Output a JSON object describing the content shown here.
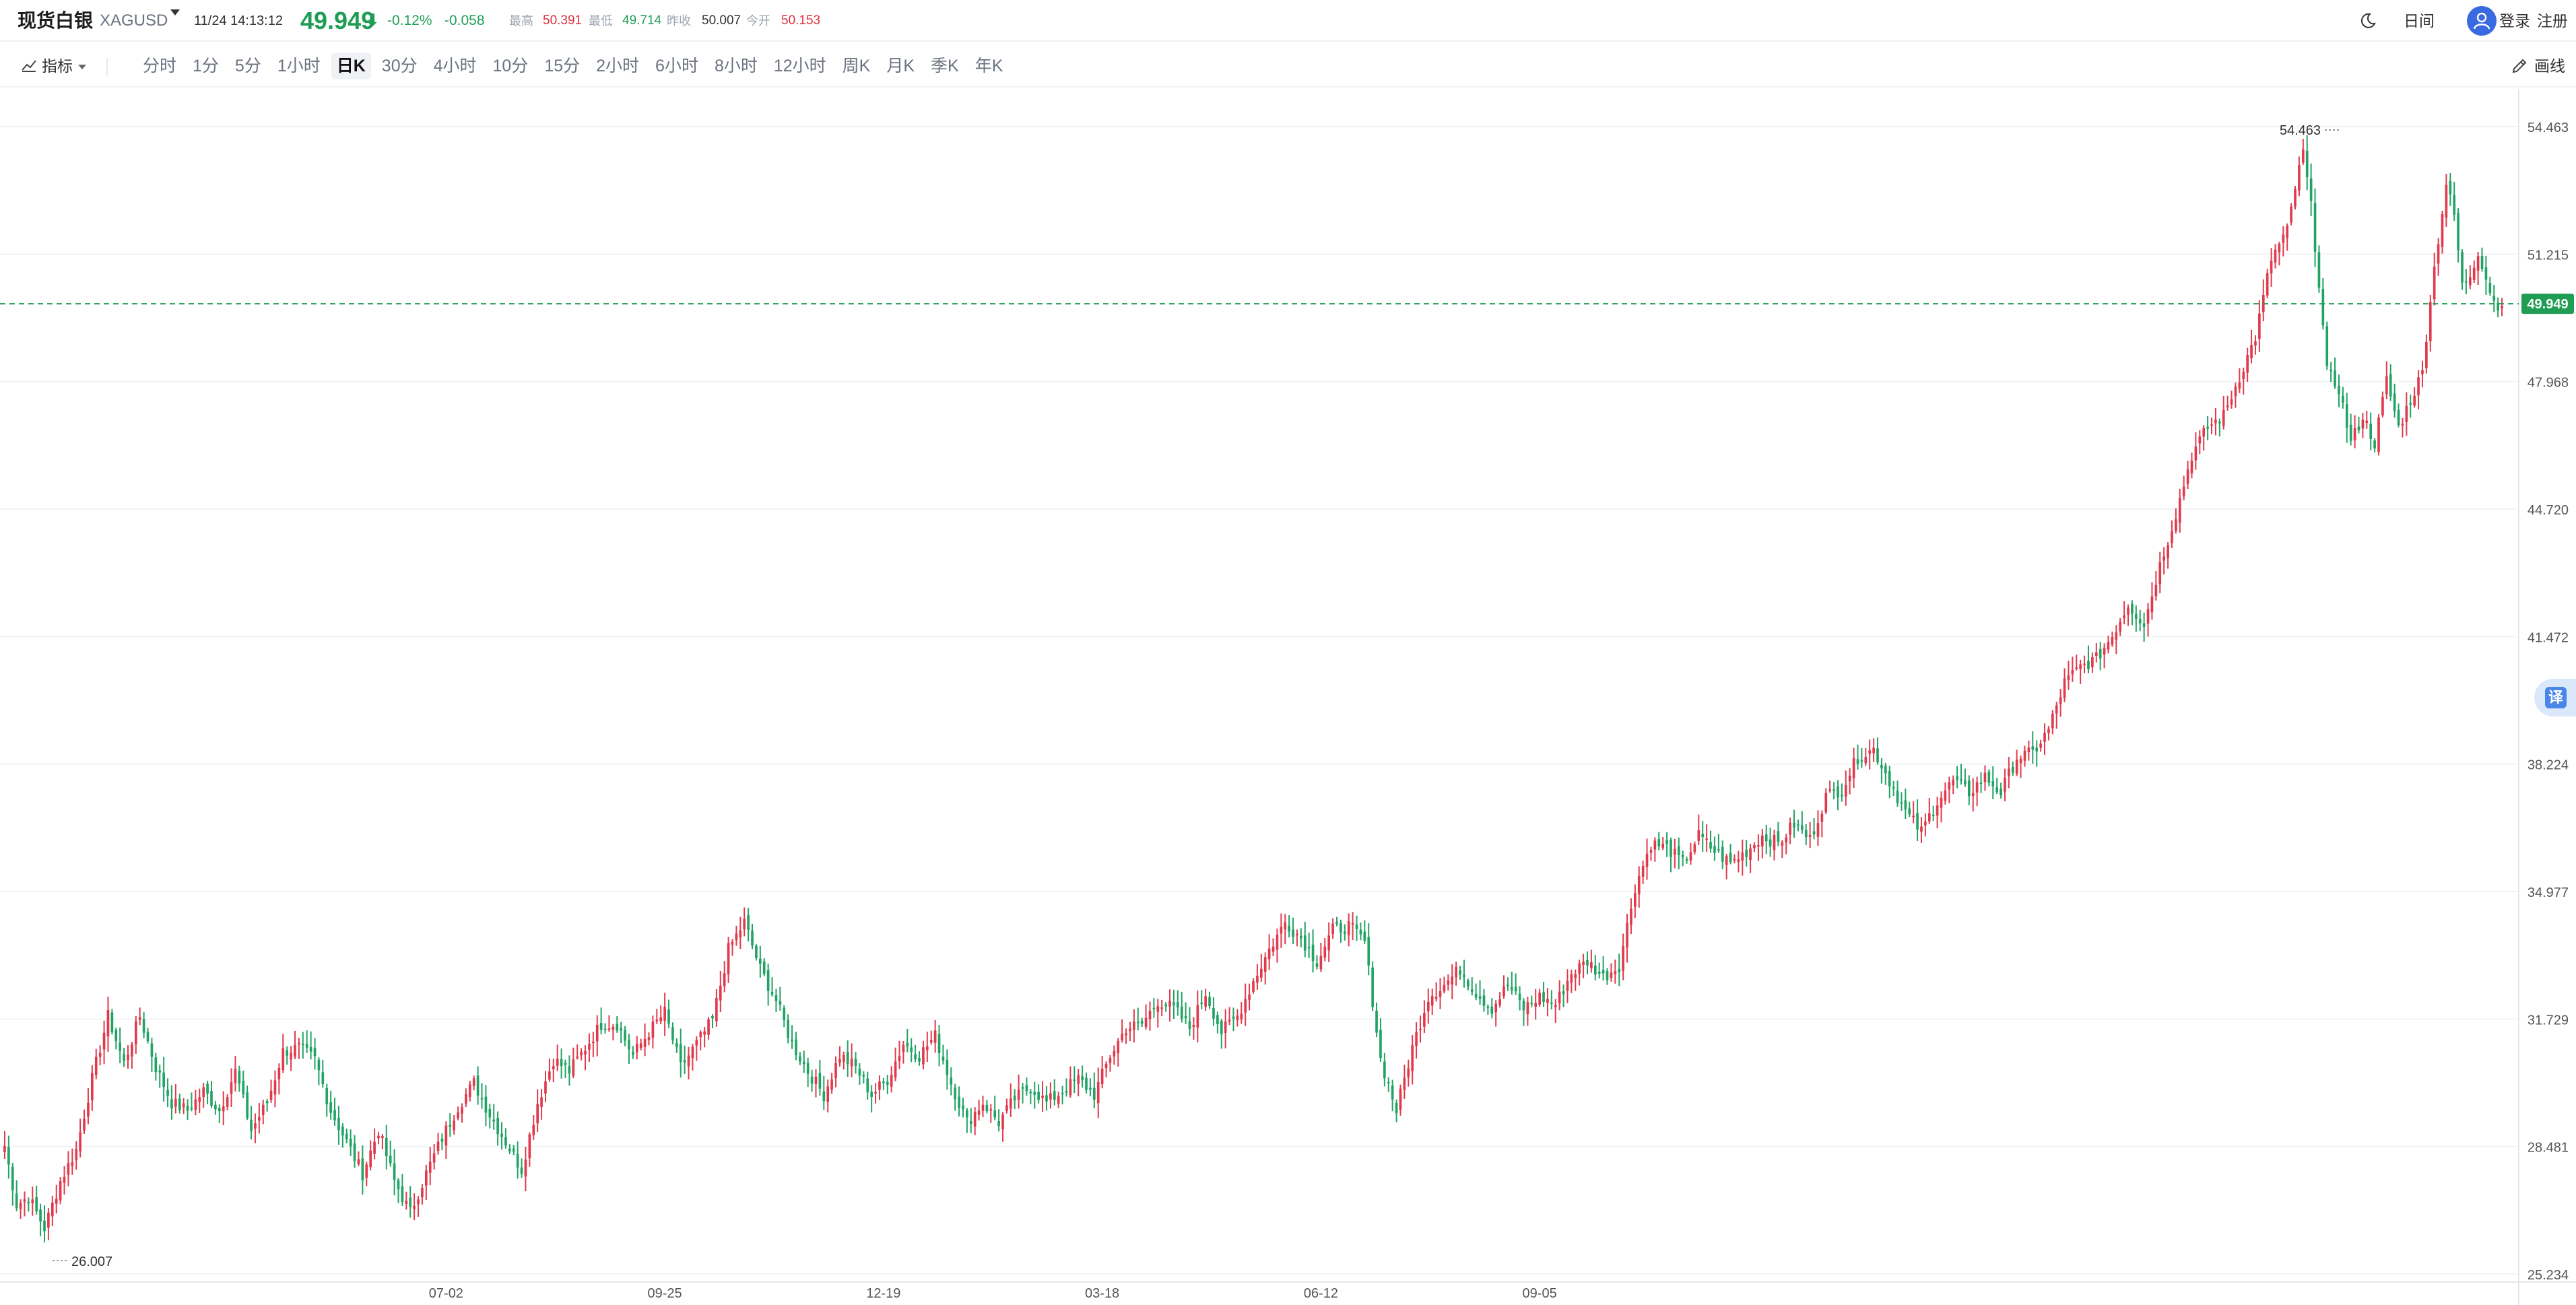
{
  "header": {
    "symbol_name": "现货白银",
    "symbol_code": "XAGUSD",
    "datetime": "11/24 14:13:12",
    "price": "49.949",
    "price_arrow": "⬇",
    "change_pct": "-0.12%",
    "change_value": "-0.058",
    "stats": [
      {
        "label": "最高",
        "value": "50.391",
        "color": "red"
      },
      {
        "label": "最低",
        "value": "49.714",
        "color": "green"
      },
      {
        "label": "昨收",
        "value": "50.007",
        "color": "dark"
      },
      {
        "label": "今开",
        "value": "50.153",
        "color": "red"
      }
    ],
    "day_night_label": "日间",
    "login_label": "登录",
    "register_label": "注册"
  },
  "toolbar": {
    "indicators_label": "指标",
    "timeframes": [
      "分时",
      "1分",
      "5分",
      "1小时",
      "日K",
      "30分",
      "4小时",
      "10分",
      "15分",
      "2小时",
      "6小时",
      "8小时",
      "12小时",
      "周K",
      "月K",
      "季K",
      "年K"
    ],
    "active_timeframe": "日K",
    "draw_label": "画线"
  },
  "translate_label": "译",
  "colors": {
    "up": "#e03a4c",
    "down": "#21a365",
    "current_price_tag": "#1f9d55",
    "grid": "#f1f3f5",
    "axis_text": "#555555"
  },
  "chart_data": {
    "type": "candlestick",
    "yticks": [
      54.463,
      51.215,
      47.968,
      44.72,
      41.472,
      38.224,
      34.977,
      31.729,
      28.481,
      25.234
    ],
    "ylim": [
      25.234,
      54.463
    ],
    "xticks": [
      "07-02",
      "09-25",
      "12-19",
      "03-18",
      "06-12",
      "09-05"
    ],
    "current_price": 49.949,
    "current_price_label": "49.949",
    "max_label": "54.463",
    "min_label": "26.007",
    "anchors": [
      [
        0,
        28.5
      ],
      [
        3,
        27.0
      ],
      [
        6,
        27.2
      ],
      [
        10,
        26.4
      ],
      [
        14,
        27.6
      ],
      [
        18,
        28.4
      ],
      [
        22,
        30.2
      ],
      [
        26,
        31.8
      ],
      [
        30,
        30.6
      ],
      [
        34,
        31.8
      ],
      [
        38,
        30.5
      ],
      [
        42,
        29.6
      ],
      [
        46,
        29.4
      ],
      [
        50,
        29.9
      ],
      [
        54,
        29.4
      ],
      [
        58,
        30.4
      ],
      [
        62,
        28.9
      ],
      [
        66,
        29.6
      ],
      [
        70,
        30.9
      ],
      [
        74,
        31.0
      ],
      [
        78,
        30.7
      ],
      [
        82,
        29.4
      ],
      [
        86,
        28.6
      ],
      [
        90,
        27.8
      ],
      [
        94,
        28.9
      ],
      [
        98,
        27.6
      ],
      [
        102,
        26.8
      ],
      [
        106,
        27.8
      ],
      [
        110,
        28.7
      ],
      [
        114,
        29.5
      ],
      [
        118,
        30.1
      ],
      [
        122,
        29.3
      ],
      [
        126,
        28.6
      ],
      [
        130,
        27.9
      ],
      [
        134,
        29.6
      ],
      [
        138,
        30.7
      ],
      [
        142,
        30.4
      ],
      [
        146,
        31.0
      ],
      [
        150,
        31.6
      ],
      [
        154,
        31.6
      ],
      [
        158,
        30.8
      ],
      [
        162,
        31.4
      ],
      [
        166,
        31.9
      ],
      [
        170,
        30.5
      ],
      [
        174,
        31.1
      ],
      [
        178,
        31.7
      ],
      [
        182,
        33.5
      ],
      [
        186,
        34.2
      ],
      [
        190,
        33.0
      ],
      [
        194,
        32.2
      ],
      [
        198,
        31.1
      ],
      [
        202,
        30.4
      ],
      [
        206,
        29.8
      ],
      [
        210,
        30.8
      ],
      [
        214,
        30.5
      ],
      [
        218,
        29.8
      ],
      [
        222,
        30.2
      ],
      [
        226,
        31.1
      ],
      [
        230,
        30.8
      ],
      [
        234,
        31.3
      ],
      [
        238,
        30.1
      ],
      [
        242,
        29.1
      ],
      [
        246,
        29.6
      ],
      [
        250,
        29.1
      ],
      [
        254,
        29.7
      ],
      [
        258,
        30.0
      ],
      [
        262,
        29.6
      ],
      [
        266,
        29.9
      ],
      [
        270,
        30.2
      ],
      [
        274,
        29.8
      ],
      [
        278,
        30.8
      ],
      [
        282,
        31.5
      ],
      [
        286,
        31.6
      ],
      [
        290,
        32.2
      ],
      [
        294,
        32.0
      ],
      [
        298,
        31.5
      ],
      [
        302,
        32.4
      ],
      [
        306,
        31.4
      ],
      [
        310,
        31.8
      ],
      [
        314,
        32.7
      ],
      [
        318,
        33.5
      ],
      [
        322,
        34.2
      ],
      [
        326,
        33.8
      ],
      [
        330,
        33.2
      ],
      [
        334,
        34.0
      ],
      [
        338,
        34.1
      ],
      [
        342,
        33.7
      ],
      [
        346,
        30.7
      ],
      [
        350,
        29.4
      ],
      [
        354,
        31.0
      ],
      [
        358,
        32.3
      ],
      [
        362,
        32.6
      ],
      [
        366,
        33.0
      ],
      [
        370,
        32.4
      ],
      [
        374,
        32.0
      ],
      [
        378,
        32.6
      ],
      [
        382,
        32.0
      ],
      [
        386,
        32.3
      ],
      [
        390,
        32.1
      ],
      [
        394,
        32.9
      ],
      [
        398,
        33.2
      ],
      [
        402,
        32.8
      ],
      [
        406,
        33.1
      ],
      [
        410,
        35.1
      ],
      [
        414,
        36.2
      ],
      [
        418,
        36.1
      ],
      [
        422,
        35.7
      ],
      [
        426,
        36.4
      ],
      [
        430,
        36.0
      ],
      [
        434,
        35.7
      ],
      [
        438,
        36.0
      ],
      [
        442,
        36.4
      ],
      [
        446,
        36.2
      ],
      [
        450,
        36.7
      ],
      [
        454,
        36.3
      ],
      [
        458,
        37.4
      ],
      [
        462,
        37.6
      ],
      [
        466,
        38.4
      ],
      [
        470,
        38.6
      ],
      [
        474,
        37.8
      ],
      [
        478,
        37.0
      ],
      [
        482,
        36.5
      ],
      [
        486,
        37.3
      ],
      [
        490,
        37.8
      ],
      [
        494,
        37.5
      ],
      [
        498,
        37.9
      ],
      [
        502,
        37.5
      ],
      [
        506,
        38.4
      ],
      [
        510,
        38.5
      ],
      [
        514,
        39.1
      ],
      [
        518,
        40.3
      ],
      [
        522,
        40.7
      ],
      [
        526,
        40.9
      ],
      [
        530,
        41.5
      ],
      [
        534,
        42.3
      ],
      [
        538,
        41.8
      ],
      [
        542,
        43.3
      ],
      [
        546,
        44.6
      ],
      [
        550,
        46.1
      ],
      [
        554,
        46.8
      ],
      [
        558,
        47.1
      ],
      [
        562,
        48.1
      ],
      [
        566,
        49.1
      ],
      [
        570,
        51.1
      ],
      [
        574,
        51.8
      ],
      [
        576,
        52.9
      ],
      [
        578,
        53.8
      ],
      [
        580,
        52.4
      ],
      [
        582,
        50.5
      ],
      [
        584,
        48.2
      ],
      [
        587,
        47.8
      ],
      [
        590,
        46.4
      ],
      [
        593,
        47.1
      ],
      [
        596,
        46.4
      ],
      [
        599,
        48.0
      ],
      [
        602,
        46.8
      ],
      [
        605,
        47.5
      ],
      [
        608,
        48.2
      ],
      [
        610,
        50.1
      ],
      [
        612,
        51.6
      ],
      [
        614,
        53.0
      ],
      [
        616,
        52.2
      ],
      [
        618,
        50.4
      ],
      [
        620,
        50.7
      ],
      [
        622,
        51.3
      ],
      [
        624,
        50.6
      ],
      [
        626,
        50.0
      ],
      [
        628,
        49.9
      ]
    ]
  }
}
